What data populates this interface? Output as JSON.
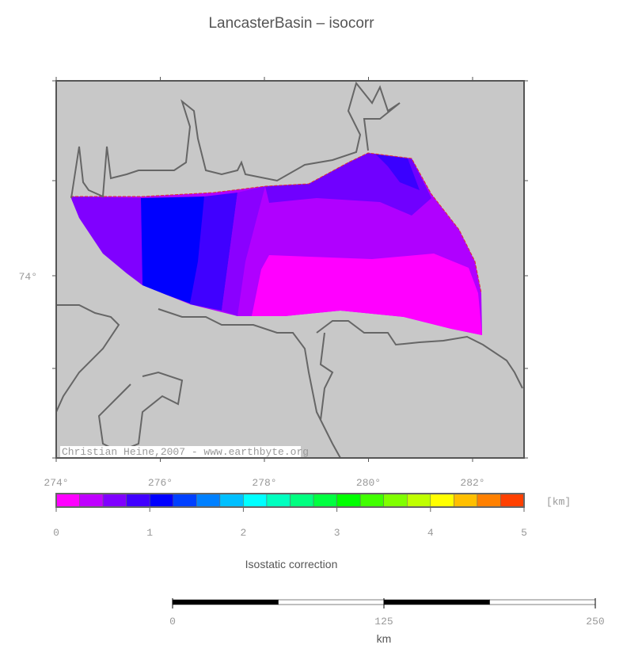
{
  "title": "LancasterBasin – isocorr",
  "map": {
    "xlim": [
      274,
      283
    ],
    "lon_ticks": [
      {
        "value": 274,
        "label": "274°"
      },
      {
        "value": 276,
        "label": "276°"
      },
      {
        "value": 278,
        "label": "278°"
      },
      {
        "value": 280,
        "label": "280°"
      },
      {
        "value": 282,
        "label": "282°"
      }
    ],
    "lat_ticks": [
      {
        "value": 74,
        "label": "74°"
      }
    ],
    "credit": "Christian Heine,2007 - www.earthbyte.org"
  },
  "colorbar": {
    "lim": [
      0,
      5
    ],
    "ticks": [
      0,
      1,
      2,
      3,
      4,
      5
    ],
    "unit": "[km]",
    "label": "Isostatic correction",
    "colors": [
      "#ff00ff",
      "#bf00ff",
      "#8000ff",
      "#4000ff",
      "#0000ff",
      "#0040ff",
      "#0080ff",
      "#00bfff",
      "#00ffff",
      "#00ffbf",
      "#00ff80",
      "#00ff40",
      "#00ff00",
      "#40ff00",
      "#80ff00",
      "#bfff00",
      "#ffff00",
      "#ffbf00",
      "#ff8000",
      "#ff4000"
    ]
  },
  "scalebar": {
    "lim": [
      0,
      250
    ],
    "ticks": [
      0,
      125,
      250
    ],
    "unit": "km"
  }
}
